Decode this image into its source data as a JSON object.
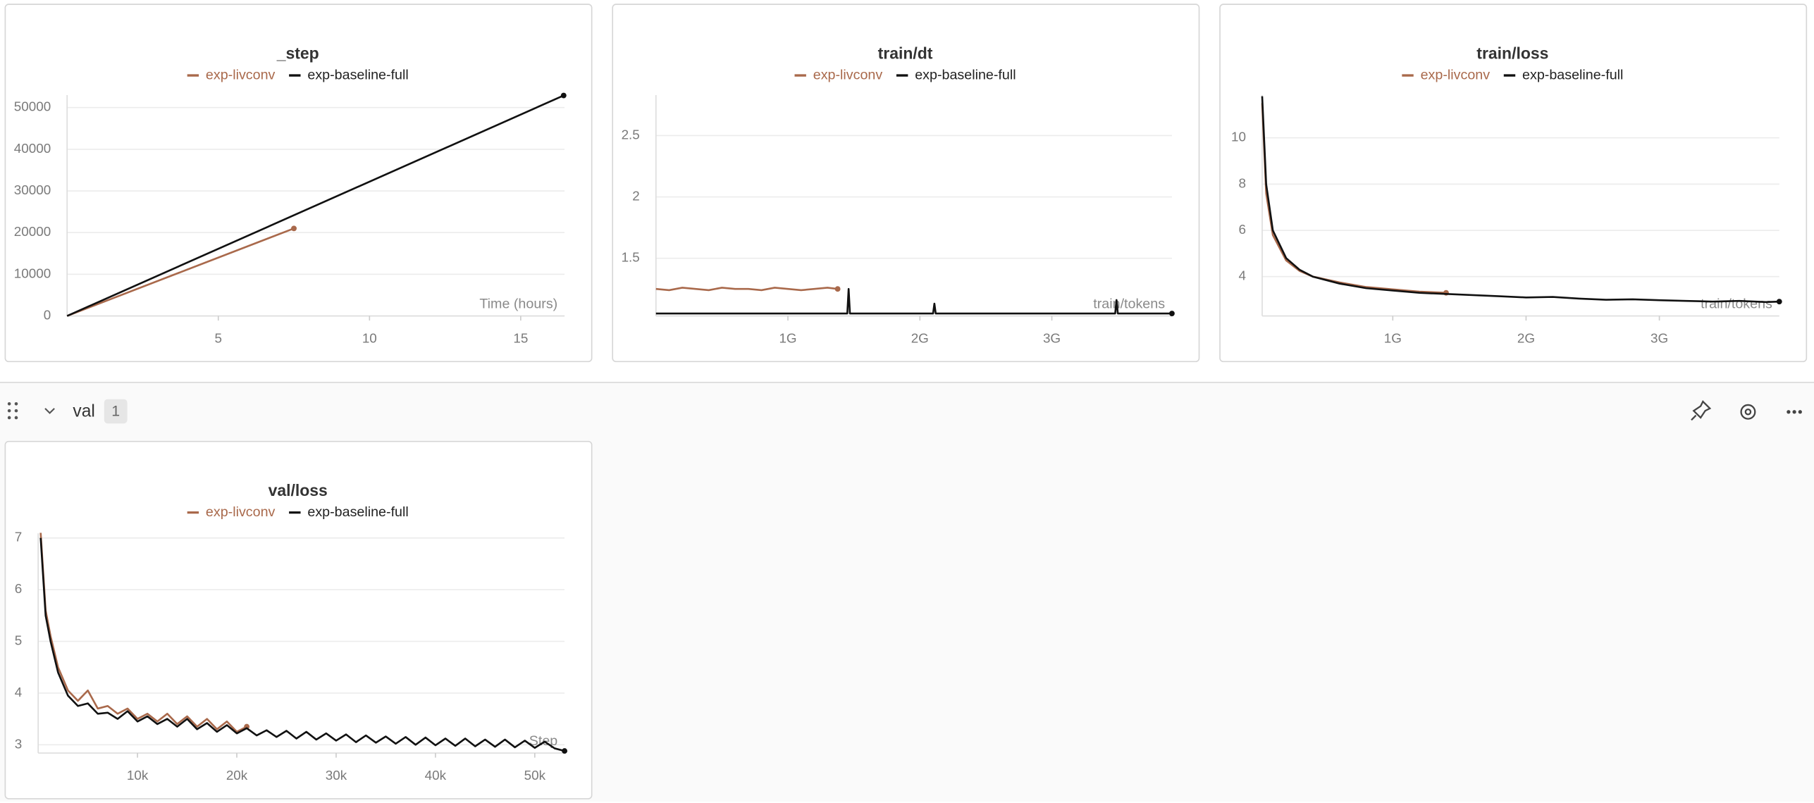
{
  "section": {
    "title": "val",
    "count": "1"
  },
  "chart_data": [
    {
      "type": "line",
      "title": "_step",
      "xlabel": "Time (hours)",
      "xlim": [
        0,
        16.45
      ],
      "ylim": [
        0,
        53000
      ],
      "xticks": [
        5,
        10,
        15
      ],
      "yticks": [
        0,
        10000,
        20000,
        30000,
        40000,
        50000
      ],
      "grid": true,
      "series": [
        {
          "name": "exp-livconv",
          "color": "#a9694b",
          "x": [
            0,
            7.5
          ],
          "values": [
            0,
            21000
          ]
        },
        {
          "name": "exp-baseline-full",
          "color": "#111111",
          "x": [
            0,
            16.42
          ],
          "values": [
            0,
            52900
          ]
        }
      ]
    },
    {
      "type": "line",
      "title": "train/dt",
      "xlabel": "train/tokens",
      "xlim": [
        0,
        3910000000.0
      ],
      "ylim": [
        1.03,
        2.83
      ],
      "xticks": [
        {
          "value": 1000000000.0,
          "label": "1G"
        },
        {
          "value": 2000000000.0,
          "label": "2G"
        },
        {
          "value": 3000000000.0,
          "label": "3G"
        }
      ],
      "yticks": [
        1.5,
        2,
        2.5
      ],
      "grid": true,
      "series": [
        {
          "name": "exp-livconv",
          "color": "#a9694b",
          "x": [
            0,
            100000000.0,
            200000000.0,
            300000000.0,
            400000000.0,
            500000000.0,
            600000000.0,
            700000000.0,
            800000000.0,
            900000000.0,
            1000000000.0,
            1100000000.0,
            1200000000.0,
            1300000000.0,
            1377000000.0
          ],
          "values": [
            1.25,
            1.24,
            1.26,
            1.25,
            1.24,
            1.26,
            1.25,
            1.25,
            1.24,
            1.26,
            1.25,
            1.24,
            1.25,
            1.26,
            1.25
          ]
        },
        {
          "name": "exp-baseline-full",
          "color": "#111111",
          "x": [
            0,
            500000000.0,
            1000000000.0,
            1450000000.0,
            1460000000.0,
            1470000000.0,
            1900000000.0,
            2100000000.0,
            2110000000.0,
            2120000000.0,
            2500000000.0,
            3000000000.0,
            3200000000.0,
            3480000000.0,
            3490000000.0,
            3500000000.0,
            3910000000.0
          ],
          "values": [
            1.05,
            1.05,
            1.05,
            1.05,
            1.25,
            1.05,
            1.05,
            1.05,
            1.13,
            1.05,
            1.05,
            1.05,
            1.05,
            1.05,
            1.16,
            1.05,
            1.05
          ]
        }
      ]
    },
    {
      "type": "line",
      "title": "train/loss",
      "xlabel": "train/tokens",
      "xlim": [
        20000000.0,
        3900000000.0
      ],
      "ylim": [
        2.3,
        11.85
      ],
      "xticks": [
        {
          "value": 1000000000.0,
          "label": "1G"
        },
        {
          "value": 2000000000.0,
          "label": "2G"
        },
        {
          "value": 3000000000.0,
          "label": "3G"
        }
      ],
      "yticks": [
        4,
        6,
        8,
        10
      ],
      "grid": true,
      "series": [
        {
          "name": "exp-livconv",
          "color": "#a9694b",
          "x": [
            20000000.0,
            50000000.0,
            100000000.0,
            200000000.0,
            300000000.0,
            400000000.0,
            600000000.0,
            800000000.0,
            1000000000.0,
            1200000000.0,
            1400000000.0
          ],
          "values": [
            11.5,
            7.6,
            5.8,
            4.7,
            4.25,
            4.0,
            3.75,
            3.55,
            3.45,
            3.35,
            3.3
          ]
        },
        {
          "name": "exp-baseline-full",
          "color": "#111111",
          "x": [
            20000000.0,
            50000000.0,
            100000000.0,
            200000000.0,
            300000000.0,
            400000000.0,
            600000000.0,
            800000000.0,
            1000000000.0,
            1200000000.0,
            1400000000.0,
            1600000000.0,
            1800000000.0,
            2000000000.0,
            2200000000.0,
            2400000000.0,
            2600000000.0,
            2800000000.0,
            3000000000.0,
            3200000000.0,
            3400000000.0,
            3600000000.0,
            3800000000.0,
            3900000000.0
          ],
          "values": [
            11.8,
            8.0,
            6.0,
            4.8,
            4.3,
            4.0,
            3.7,
            3.5,
            3.4,
            3.3,
            3.25,
            3.2,
            3.15,
            3.1,
            3.12,
            3.05,
            3.0,
            3.02,
            2.98,
            2.95,
            2.92,
            2.95,
            2.9,
            2.92
          ]
        }
      ]
    },
    {
      "type": "line",
      "title": "val/loss",
      "xlabel": "Step",
      "xlim": [
        0,
        53000
      ],
      "ylim": [
        2.84,
        7.09
      ],
      "xticks": [
        {
          "value": 10000,
          "label": "10k"
        },
        {
          "value": 20000,
          "label": "20k"
        },
        {
          "value": 30000,
          "label": "30k"
        },
        {
          "value": 40000,
          "label": "40k"
        },
        {
          "value": 50000,
          "label": "50k"
        }
      ],
      "yticks": [
        3,
        4,
        5,
        6,
        7
      ],
      "grid": true,
      "series": [
        {
          "name": "exp-livconv",
          "color": "#a9694b",
          "x": [
            250,
            750,
            1250,
            2000,
            3000,
            4000,
            5000,
            6000,
            7000,
            8000,
            9000,
            10000,
            11000,
            12000,
            13000,
            14000,
            15000,
            16000,
            17000,
            18000,
            19000,
            20000,
            21000
          ],
          "values": [
            7.1,
            5.6,
            5.1,
            4.5,
            4.05,
            3.85,
            4.05,
            3.7,
            3.75,
            3.6,
            3.7,
            3.5,
            3.6,
            3.45,
            3.6,
            3.4,
            3.55,
            3.35,
            3.5,
            3.3,
            3.45,
            3.25,
            3.35
          ]
        },
        {
          "name": "exp-baseline-full",
          "color": "#111111",
          "x": [
            250,
            750,
            1250,
            2000,
            3000,
            4000,
            5000,
            6000,
            7000,
            8000,
            9000,
            10000,
            11000,
            12000,
            13000,
            14000,
            15000,
            16000,
            17000,
            18000,
            19000,
            20000,
            21000,
            22000,
            23000,
            24000,
            25000,
            26000,
            27000,
            28000,
            29000,
            30000,
            31000,
            32000,
            33000,
            34000,
            35000,
            36000,
            37000,
            38000,
            39000,
            40000,
            41000,
            42000,
            43000,
            44000,
            45000,
            46000,
            47000,
            48000,
            49000,
            50000,
            51000,
            52000,
            53000
          ],
          "values": [
            7.0,
            5.5,
            5.0,
            4.4,
            3.95,
            3.75,
            3.8,
            3.6,
            3.62,
            3.5,
            3.65,
            3.45,
            3.55,
            3.4,
            3.5,
            3.35,
            3.5,
            3.3,
            3.42,
            3.25,
            3.38,
            3.22,
            3.32,
            3.18,
            3.28,
            3.15,
            3.27,
            3.12,
            3.25,
            3.1,
            3.22,
            3.08,
            3.2,
            3.05,
            3.18,
            3.04,
            3.16,
            3.02,
            3.15,
            3.0,
            3.14,
            2.99,
            3.12,
            2.98,
            3.12,
            2.97,
            3.1,
            2.96,
            3.1,
            2.95,
            3.08,
            2.94,
            3.06,
            2.93,
            2.88
          ]
        }
      ]
    }
  ]
}
